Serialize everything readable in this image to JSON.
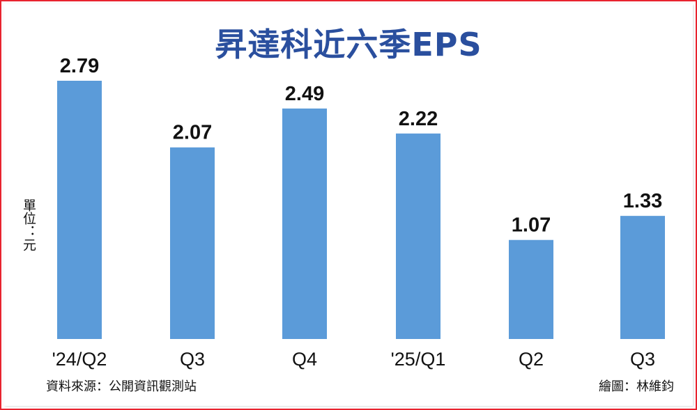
{
  "colors": {
    "bar": "#5b9bd9",
    "title": "#2a4f9e",
    "border": "#e8232f"
  },
  "chart_data": {
    "type": "bar",
    "title": "昇達科近六季EPS",
    "ylabel": "單位：元",
    "categories": [
      "'24/Q2",
      "Q3",
      "Q4",
      "'25/Q1",
      "Q2",
      "Q3"
    ],
    "values": [
      2.79,
      2.07,
      2.49,
      2.22,
      1.07,
      1.33
    ],
    "value_labels": [
      "2.79",
      "2.07",
      "2.49",
      "2.22",
      "1.07",
      "1.33"
    ],
    "ylim": [
      0,
      2.79
    ],
    "grid": false,
    "legend": "none"
  },
  "footer": {
    "source": "資料來源：公開資訊觀測站",
    "credit": "繪圖：林維鈞"
  }
}
